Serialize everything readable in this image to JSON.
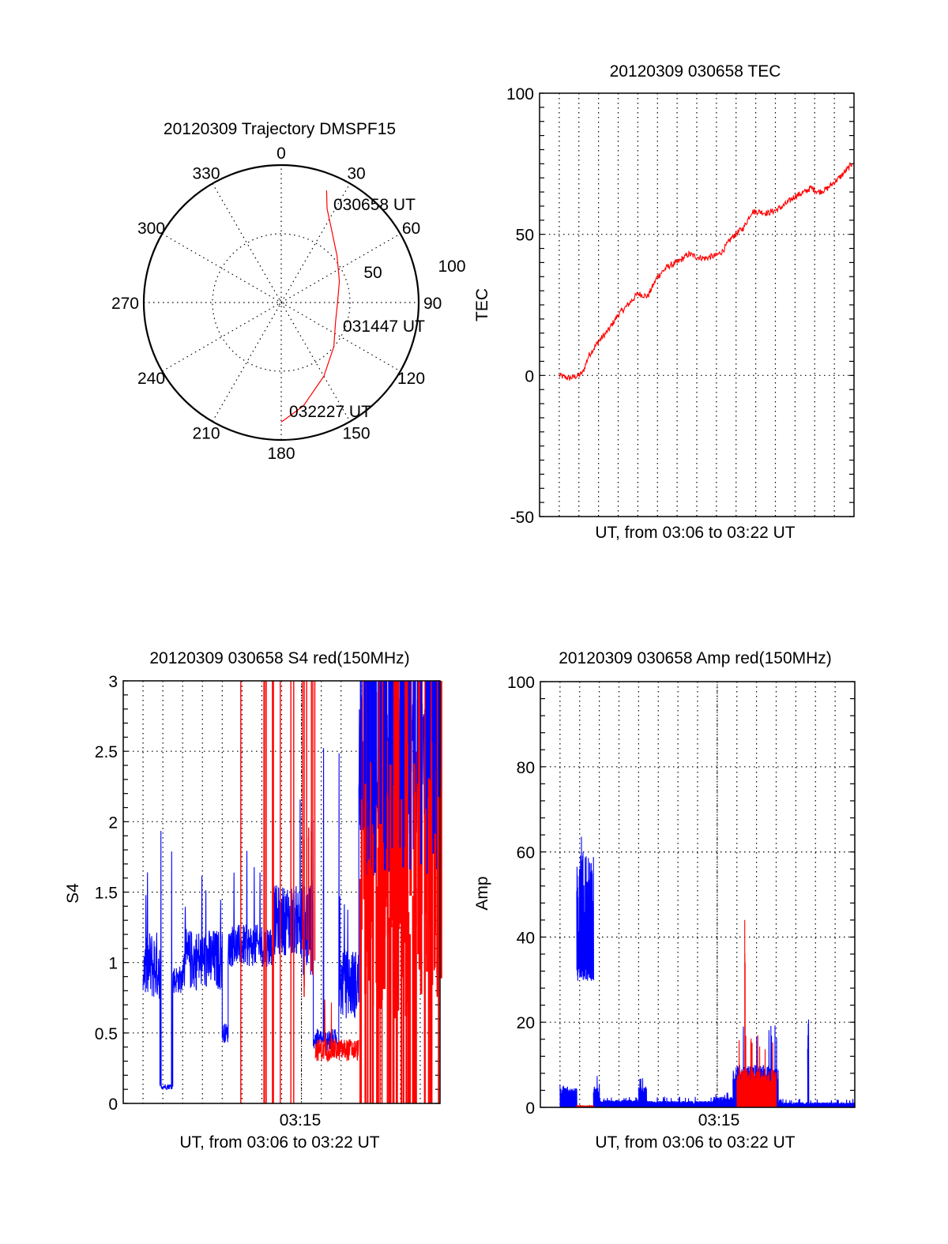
{
  "figure": {
    "date": "20120309",
    "colors": {
      "red": "#ff0000",
      "blue": "#0000ff",
      "grid": "#000000"
    }
  },
  "chart_data": [
    {
      "id": "trajectory",
      "type": "polar",
      "title": "20120309 Trajectory DMSPF15",
      "angle_labels": [
        "0",
        "30",
        "60",
        "90",
        "120",
        "150",
        "180",
        "210",
        "240",
        "270",
        "300",
        "330"
      ],
      "radial_labels": [
        "50",
        "100"
      ],
      "radial_range": [
        0,
        100
      ],
      "grid": true,
      "series": [
        {
          "name": "trajectory",
          "color": "#ff0000",
          "points_az_r": [
            [
              22,
              88
            ],
            [
              26,
              76
            ],
            [
              35,
              64
            ],
            [
              50,
              53
            ],
            [
              70,
              45
            ],
            [
              90,
              41
            ],
            [
              110,
              42
            ],
            [
              130,
              50
            ],
            [
              150,
              62
            ],
            [
              168,
              77
            ],
            [
              180,
              87
            ]
          ]
        }
      ],
      "annotations": [
        "030658 UT",
        "031447 UT",
        "032227 UT"
      ]
    },
    {
      "id": "tec",
      "type": "line",
      "title": "20120309 030658 TEC",
      "xlabel": "UT, from 03:06 to 03:22 UT",
      "ylabel": "TEC",
      "xlim_minutes": [
        0,
        16
      ],
      "ylim": [
        -50,
        100
      ],
      "yticks": [
        "100",
        "50",
        "0",
        "-50"
      ],
      "xticks": [],
      "grid": true,
      "series": [
        {
          "name": "TEC",
          "color": "#ff0000",
          "x_minutes": [
            1.0,
            1.5,
            2.0,
            2.2,
            2.5,
            3.0,
            3.5,
            4.0,
            4.5,
            5.0,
            5.5,
            6.0,
            6.5,
            7.0,
            7.6,
            8.0,
            8.4,
            9.0,
            9.3,
            9.8,
            10.4,
            10.8,
            11.2,
            11.6,
            12.0,
            12.4,
            13.0,
            13.5,
            13.8,
            14.2,
            14.6,
            15.0,
            15.4,
            15.9
          ],
          "y": [
            0,
            -1,
            0,
            1,
            7,
            12,
            16,
            21.5,
            25,
            29,
            28,
            35,
            38.5,
            40,
            43,
            42,
            41.5,
            42.5,
            44,
            49,
            52.5,
            58,
            58,
            57.5,
            58.5,
            60,
            63.5,
            65,
            66.5,
            65,
            66,
            68.5,
            71,
            75
          ]
        }
      ]
    },
    {
      "id": "s4",
      "type": "line",
      "title": "20120309 030658 S4 red(150MHz)",
      "xlabel": "UT, from 03:06 to 03:22 UT",
      "ylabel": "S4",
      "xlim_minutes": [
        0,
        16
      ],
      "ylim": [
        0,
        3
      ],
      "yticks": [
        "3",
        "2.5",
        "2",
        "1.5",
        "1",
        "0.5",
        "0"
      ],
      "xticks": [
        {
          "minute": 9,
          "label": "03:15"
        }
      ],
      "grid": true,
      "series": [
        {
          "name": "S4 blue",
          "color": "#0000ff",
          "segments": [
            {
              "t0": 1.0,
              "t1": 1.85,
              "mean": 0.98,
              "spread": 0.25,
              "peak": 1.65
            },
            {
              "t0": 1.85,
              "t1": 2.5,
              "mean": 0.12,
              "spread": 0.02,
              "peak": 2.1
            },
            {
              "t0": 2.5,
              "t1": 3.0,
              "mean": 0.88,
              "spread": 0.1,
              "peak": 0.98
            },
            {
              "t0": 3.0,
              "t1": 5.0,
              "mean": 1.02,
              "spread": 0.22,
              "peak": 1.63
            },
            {
              "t0": 5.0,
              "t1": 5.3,
              "mean": 0.5,
              "spread": 0.07,
              "peak": 0.62
            },
            {
              "t0": 5.3,
              "t1": 7.6,
              "mean": 1.12,
              "spread": 0.15,
              "peak": 1.87
            },
            {
              "t0": 7.6,
              "t1": 9.0,
              "mean": 1.3,
              "spread": 0.25,
              "peak": 2.3
            },
            {
              "t0": 9.0,
              "t1": 9.6,
              "mean": 1.25,
              "spread": 0.35,
              "peak": 2.1
            },
            {
              "t0": 9.6,
              "t1": 10.9,
              "mean": 0.45,
              "spread": 0.08,
              "peak": 2.9
            },
            {
              "t0": 10.9,
              "t1": 11.9,
              "mean": 0.85,
              "spread": 0.25,
              "peak": 1.6
            },
            {
              "t0": 11.9,
              "t1": 16.0,
              "mean": 2.4,
              "spread": 0.5,
              "peak": 3.0
            }
          ]
        },
        {
          "name": "S4 red",
          "color": "#ff0000",
          "segments": [
            {
              "t0": 5.9,
              "t1": 9.0,
              "mean": 0.0,
              "spread": 0.0,
              "peak": 3.0,
              "spikes": 16
            },
            {
              "t0": 9.0,
              "t1": 9.7,
              "mean": 1.2,
              "spread": 0.5,
              "peak": 3.0,
              "spikes": 12
            },
            {
              "t0": 9.7,
              "t1": 11.9,
              "mean": 0.38,
              "spread": 0.08,
              "peak": 0.75
            },
            {
              "t0": 11.9,
              "t1": 16.0,
              "mean": 1.5,
              "spread": 0.9,
              "peak": 3.0,
              "spikes": 70
            }
          ]
        }
      ]
    },
    {
      "id": "amp",
      "type": "line",
      "title": "20120309 030658 Amp red(150MHz)",
      "xlabel": "UT, from 03:06 to 03:22 UT",
      "ylabel": "Amp",
      "xlim_minutes": [
        0,
        16
      ],
      "ylim": [
        0,
        100
      ],
      "yticks": [
        "100",
        "80",
        "60",
        "40",
        "20",
        "0"
      ],
      "xticks": [
        {
          "minute": 9,
          "label": "03:15"
        }
      ],
      "grid": true,
      "series": [
        {
          "name": "Amp blue",
          "color": "#0000ff",
          "segments": [
            {
              "t0": 1.0,
              "t1": 1.85,
              "low": 0,
              "high": 4.5,
              "peak": 5.5
            },
            {
              "t0": 1.85,
              "t1": 2.7,
              "low": 33,
              "high": 60,
              "peak": 65
            },
            {
              "t0": 2.7,
              "t1": 3.0,
              "low": 0,
              "high": 5.5,
              "peak": 7.5
            },
            {
              "t0": 3.0,
              "t1": 5.0,
              "low": 0,
              "high": 1.8,
              "peak": 2.5
            },
            {
              "t0": 5.0,
              "t1": 5.4,
              "low": 0,
              "high": 5,
              "peak": 7
            },
            {
              "t0": 5.4,
              "t1": 8.8,
              "low": 0,
              "high": 1.5,
              "peak": 2.5
            },
            {
              "t0": 8.8,
              "t1": 9.8,
              "low": 0,
              "high": 2.5,
              "peak": 3.5
            },
            {
              "t0": 9.8,
              "t1": 12.1,
              "low": 0,
              "high": 10,
              "peak": 19.5
            },
            {
              "t0": 12.1,
              "t1": 13.6,
              "low": 0,
              "high": 1.2,
              "peak": 2
            },
            {
              "t0": 13.6,
              "t1": 13.65,
              "low": 0,
              "high": 21,
              "peak": 21
            },
            {
              "t0": 13.65,
              "t1": 16.0,
              "low": 0,
              "high": 1.2,
              "peak": 2
            }
          ]
        },
        {
          "name": "Amp red",
          "color": "#ff0000",
          "segments": [
            {
              "t0": 1.85,
              "t1": 2.7,
              "low": 0,
              "high": 0.5,
              "peak": 0.6
            },
            {
              "t0": 10.0,
              "t1": 12.0,
              "low": 0,
              "high": 9,
              "peak": 17
            },
            {
              "t0": 10.4,
              "t1": 10.42,
              "low": 0,
              "high": 44,
              "peak": 44
            }
          ]
        }
      ]
    }
  ]
}
